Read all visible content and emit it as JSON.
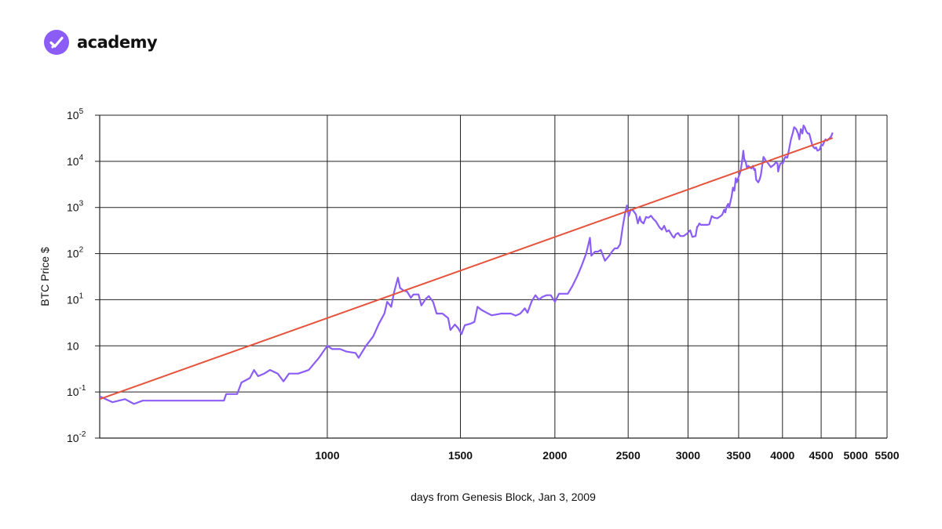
{
  "brand": {
    "name": "academy",
    "logo_icon": "checkmark-badge-icon",
    "logo_color": "#8b5cf6"
  },
  "chart_data": {
    "type": "line",
    "xscale": "log",
    "yscale": "log",
    "xlabel": "days from Genesis Block, Jan 3, 2009",
    "ylabel": "BTC Price $",
    "xlim": [
      500,
      5500
    ],
    "x_ticks": [
      1000,
      1500,
      2000,
      2500,
      3000,
      3500,
      4000,
      4500,
      5000,
      5500
    ],
    "x_tick_labels": [
      "1000",
      "1500",
      "2000",
      "2500",
      "3000",
      "3500",
      "4000",
      "4500",
      "5000",
      "5500"
    ],
    "ylim_exponent": [
      -2,
      5
    ],
    "y_ticks": [
      {
        "value": 100000,
        "base": "10",
        "exp": "5"
      },
      {
        "value": 10000,
        "base": "10",
        "exp": "4"
      },
      {
        "value": 1000,
        "base": "10",
        "exp": "3"
      },
      {
        "value": 100,
        "base": "10",
        "exp": "2"
      },
      {
        "value": 10,
        "base": "10",
        "exp": "1"
      },
      {
        "value": 1,
        "base": "10",
        "exp": ""
      },
      {
        "value": 0.1,
        "base": "10",
        "exp": "-1"
      },
      {
        "value": 0.01,
        "base": "10",
        "exp": "-2"
      }
    ],
    "grid": true,
    "colors": {
      "price": "#8b5cf6",
      "trend": "#e5533d",
      "grid": "#222222"
    },
    "series": [
      {
        "role": "price",
        "points": [
          [
            500,
            0.08
          ],
          [
            520,
            0.06
          ],
          [
            540,
            0.07
          ],
          [
            555,
            0.055
          ],
          [
            570,
            0.065
          ],
          [
            620,
            0.065
          ],
          [
            680,
            0.065
          ],
          [
            730,
            0.065
          ],
          [
            735,
            0.09
          ],
          [
            760,
            0.09
          ],
          [
            770,
            0.16
          ],
          [
            790,
            0.2
          ],
          [
            800,
            0.3
          ],
          [
            810,
            0.22
          ],
          [
            825,
            0.25
          ],
          [
            840,
            0.3
          ],
          [
            860,
            0.25
          ],
          [
            875,
            0.17
          ],
          [
            890,
            0.25
          ],
          [
            915,
            0.25
          ],
          [
            945,
            0.3
          ],
          [
            975,
            0.55
          ],
          [
            1000,
            1.0
          ],
          [
            1015,
            0.85
          ],
          [
            1040,
            0.85
          ],
          [
            1060,
            0.75
          ],
          [
            1090,
            0.7
          ],
          [
            1100,
            0.55
          ],
          [
            1125,
            1.0
          ],
          [
            1150,
            1.6
          ],
          [
            1170,
            3.0
          ],
          [
            1190,
            5.0
          ],
          [
            1200,
            9.0
          ],
          [
            1215,
            7.0
          ],
          [
            1225,
            14.0
          ],
          [
            1240,
            30.0
          ],
          [
            1248,
            18.0
          ],
          [
            1260,
            16.0
          ],
          [
            1275,
            15.0
          ],
          [
            1290,
            11.0
          ],
          [
            1300,
            13.0
          ],
          [
            1320,
            13.0
          ],
          [
            1332,
            7.5
          ],
          [
            1350,
            10.5
          ],
          [
            1362,
            12.0
          ],
          [
            1380,
            9.0
          ],
          [
            1395,
            5.0
          ],
          [
            1420,
            5.0
          ],
          [
            1445,
            4.0
          ],
          [
            1455,
            2.2
          ],
          [
            1475,
            2.9
          ],
          [
            1490,
            2.4
          ],
          [
            1505,
            1.8
          ],
          [
            1520,
            2.8
          ],
          [
            1545,
            3.0
          ],
          [
            1565,
            3.3
          ],
          [
            1580,
            7.0
          ],
          [
            1600,
            6.0
          ],
          [
            1625,
            5.2
          ],
          [
            1650,
            4.6
          ],
          [
            1700,
            5.0
          ],
          [
            1750,
            5.0
          ],
          [
            1775,
            4.5
          ],
          [
            1800,
            5.0
          ],
          [
            1825,
            6.5
          ],
          [
            1840,
            5.2
          ],
          [
            1862,
            9.0
          ],
          [
            1885,
            12.5
          ],
          [
            1905,
            10.0
          ],
          [
            1925,
            11.5
          ],
          [
            1950,
            12.5
          ],
          [
            1975,
            12.5
          ],
          [
            2000,
            9.0
          ],
          [
            2025,
            13.5
          ],
          [
            2050,
            13.5
          ],
          [
            2080,
            13.5
          ],
          [
            2110,
            20.0
          ],
          [
            2140,
            32.0
          ],
          [
            2170,
            55.0
          ],
          [
            2200,
            100.0
          ],
          [
            2215,
            160.0
          ],
          [
            2225,
            220.0
          ],
          [
            2235,
            90.0
          ],
          [
            2260,
            110.0
          ],
          [
            2280,
            110.0
          ],
          [
            2300,
            120.0
          ],
          [
            2330,
            70.0
          ],
          [
            2360,
            90.0
          ],
          [
            2380,
            110.0
          ],
          [
            2400,
            130.0
          ],
          [
            2420,
            130.0
          ],
          [
            2440,
            160.0
          ],
          [
            2460,
            400.0
          ],
          [
            2475,
            700.0
          ],
          [
            2490,
            1100.0
          ],
          [
            2505,
            650.0
          ],
          [
            2520,
            900.0
          ],
          [
            2540,
            850.0
          ],
          [
            2560,
            700.0
          ],
          [
            2575,
            450.0
          ],
          [
            2590,
            630.0
          ],
          [
            2600,
            500.0
          ],
          [
            2620,
            450.0
          ],
          [
            2640,
            620.0
          ],
          [
            2660,
            600.0
          ],
          [
            2680,
            660.0
          ],
          [
            2700,
            560.0
          ],
          [
            2720,
            500.0
          ],
          [
            2750,
            370.0
          ],
          [
            2770,
            330.0
          ],
          [
            2790,
            400.0
          ],
          [
            2810,
            300.0
          ],
          [
            2830,
            320.0
          ],
          [
            2860,
            240.0
          ],
          [
            2875,
            220.0
          ],
          [
            2890,
            260.0
          ],
          [
            2910,
            280.0
          ],
          [
            2930,
            240.0
          ],
          [
            2960,
            240.0
          ],
          [
            2990,
            270.0
          ],
          [
            3020,
            320.0
          ],
          [
            3040,
            230.0
          ],
          [
            3070,
            240.0
          ],
          [
            3085,
            380.0
          ],
          [
            3095,
            400.0
          ],
          [
            3105,
            450.0
          ],
          [
            3120,
            420.0
          ],
          [
            3150,
            420.0
          ],
          [
            3180,
            420.0
          ],
          [
            3200,
            430.0
          ],
          [
            3225,
            650.0
          ],
          [
            3250,
            600.0
          ],
          [
            3280,
            580.0
          ],
          [
            3310,
            640.0
          ],
          [
            3330,
            700.0
          ],
          [
            3350,
            900.0
          ],
          [
            3360,
            780.0
          ],
          [
            3375,
            1050.0
          ],
          [
            3390,
            1200.0
          ],
          [
            3400,
            1000.0
          ],
          [
            3425,
            1700.0
          ],
          [
            3440,
            2700.0
          ],
          [
            3455,
            2300.0
          ],
          [
            3470,
            4300.0
          ],
          [
            3480,
            3500.0
          ],
          [
            3500,
            4600.0
          ],
          [
            3520,
            6000.0
          ],
          [
            3535,
            9500.0
          ],
          [
            3550,
            17000.0
          ],
          [
            3560,
            11000.0
          ],
          [
            3575,
            10000.0
          ],
          [
            3590,
            7000.0
          ],
          [
            3605,
            8000.0
          ],
          [
            3620,
            7500.0
          ],
          [
            3640,
            7000.0
          ],
          [
            3655,
            8000.0
          ],
          [
            3670,
            6500.0
          ],
          [
            3680,
            6800.0
          ],
          [
            3692,
            4000.0
          ],
          [
            3700,
            3800.0
          ],
          [
            3715,
            3500.0
          ],
          [
            3730,
            4000.0
          ],
          [
            3745,
            5000.0
          ],
          [
            3760,
            8000.0
          ],
          [
            3775,
            12500.0
          ],
          [
            3800,
            10500.0
          ],
          [
            3830,
            9000.0
          ],
          [
            3860,
            7500.0
          ],
          [
            3900,
            8500.0
          ],
          [
            3920,
            9500.0
          ],
          [
            3940,
            9000.0
          ],
          [
            3948,
            6000.0
          ],
          [
            3960,
            7500.0
          ],
          [
            3975,
            9000.0
          ],
          [
            3990,
            9200.0
          ],
          [
            4005,
            9000.0
          ],
          [
            4020,
            11000.0
          ],
          [
            4035,
            12500.0
          ],
          [
            4060,
            12000.0
          ],
          [
            4080,
            18000.0
          ],
          [
            4105,
            30000.0
          ],
          [
            4125,
            40000.0
          ],
          [
            4145,
            55000.0
          ],
          [
            4170,
            50000.0
          ],
          [
            4195,
            40000.0
          ],
          [
            4210,
            30000.0
          ],
          [
            4230,
            50000.0
          ],
          [
            4250,
            40000.0
          ],
          [
            4265,
            60000.0
          ],
          [
            4280,
            55000.0
          ],
          [
            4300,
            45000.0
          ],
          [
            4320,
            40000.0
          ],
          [
            4340,
            40000.0
          ],
          [
            4360,
            30000.0
          ],
          [
            4380,
            22000.0
          ],
          [
            4400,
            20000.0
          ],
          [
            4415,
            19000.0
          ],
          [
            4430,
            20000.0
          ],
          [
            4450,
            17000.0
          ],
          [
            4480,
            18000.0
          ],
          [
            4500,
            23000.0
          ],
          [
            4520,
            22000.0
          ],
          [
            4545,
            27000.0
          ],
          [
            4560,
            30000.0
          ],
          [
            4580,
            28000.0
          ],
          [
            4600,
            30000.0
          ],
          [
            4620,
            32000.0
          ],
          [
            4640,
            35000.0
          ],
          [
            4660,
            42000.0
          ]
        ]
      },
      {
        "role": "trend",
        "points": [
          [
            500,
            0.07
          ],
          [
            4660,
            32000.0
          ]
        ]
      }
    ]
  }
}
